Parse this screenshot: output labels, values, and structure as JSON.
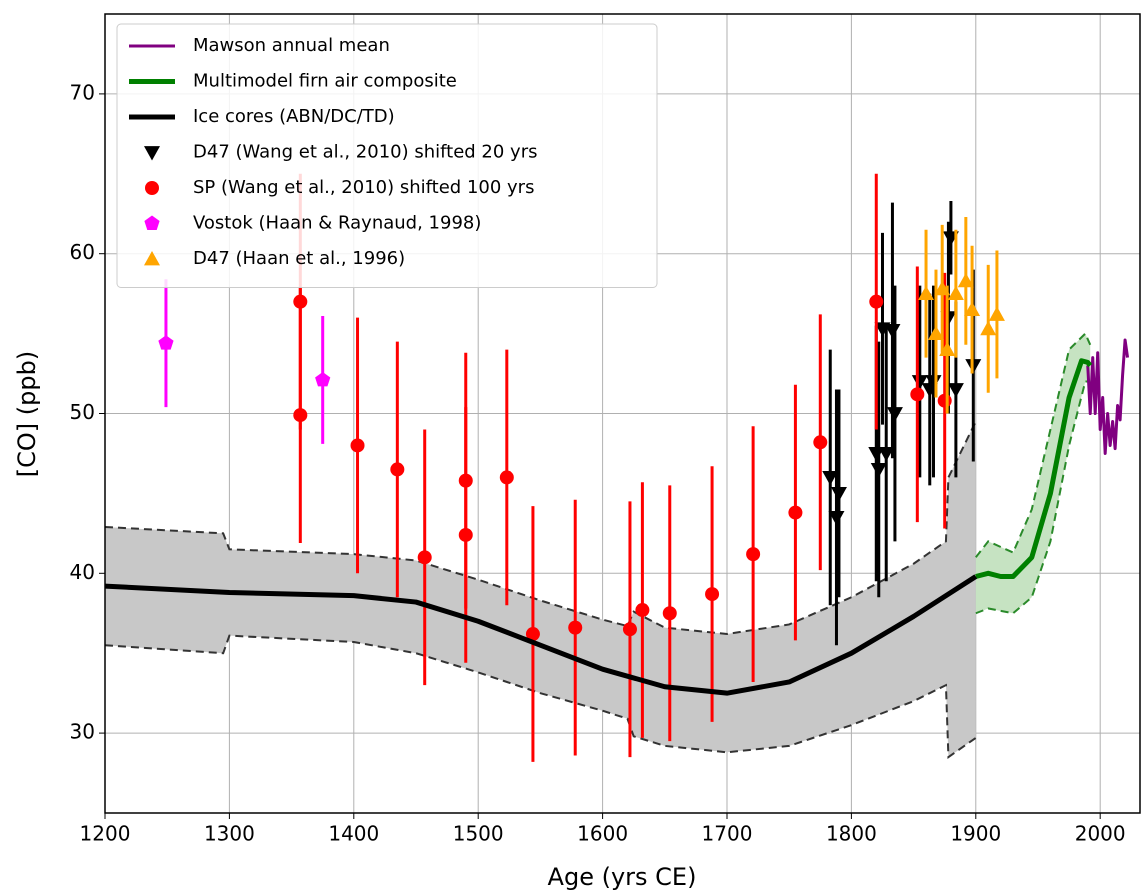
{
  "chart_data": {
    "type": "scatter",
    "xlabel": "Age (yrs CE)",
    "ylabel": "[CO] (ppb)",
    "xlim": [
      1200,
      2032
    ],
    "ylim": [
      25,
      75
    ],
    "xticks": [
      1200,
      1300,
      1400,
      1500,
      1600,
      1700,
      1800,
      1900,
      2000
    ],
    "yticks": [
      30,
      40,
      50,
      60,
      70
    ],
    "grid": true,
    "legend": "upper left",
    "bands": [
      {
        "color": "#c8c8c8",
        "x": [
          1200,
          1295,
          1300,
          1400,
          1450,
          1500,
          1550,
          1600,
          1620,
          1625,
          1650,
          1700,
          1750,
          1800,
          1850,
          1876,
          1878,
          1900
        ],
        "upper": [
          42.9,
          42.5,
          41.5,
          41.2,
          40.8,
          39.6,
          38.3,
          37.1,
          36.7,
          37.6,
          36.6,
          36.2,
          36.8,
          38.5,
          40.6,
          42,
          46,
          49.5
        ],
        "lower": [
          35.5,
          35.0,
          36.1,
          35.7,
          35.0,
          33.8,
          32.5,
          31.4,
          30.9,
          29.8,
          29.2,
          28.8,
          29.2,
          30.5,
          32.0,
          33.0,
          28.5,
          29.7
        ]
      },
      {
        "color": "#c6e3c2",
        "x": [
          1900,
          1910,
          1930,
          1945,
          1960,
          1975,
          1988,
          1992
        ],
        "upper": [
          41.0,
          42.0,
          41.3,
          44.0,
          49.0,
          54.0,
          55.0,
          54.3
        ],
        "lower": [
          37.5,
          37.8,
          37.5,
          38.5,
          42.0,
          48.0,
          52.0,
          52.0
        ]
      }
    ],
    "series": [
      {
        "name": "Mawson annual mean",
        "type": "line",
        "color": "#800080",
        "width": 3,
        "x": [
          1990,
          1992,
          1994,
          1996,
          1998,
          2000,
          2002,
          2004,
          2006,
          2008,
          2010,
          2012,
          2014,
          2016,
          2018,
          2020,
          2022
        ],
        "values": [
          53,
          50,
          53.5,
          50,
          53.8,
          49,
          51,
          47.5,
          50,
          48,
          49.5,
          47.8,
          50.5,
          49.6,
          52.4,
          54.6,
          53.5
        ]
      },
      {
        "name": "Multimodel firn air composite",
        "type": "line",
        "color": "#008000",
        "width": 5,
        "x": [
          1900,
          1910,
          1920,
          1930,
          1945,
          1960,
          1975,
          1985,
          1990,
          1992
        ],
        "values": [
          39.8,
          40.0,
          39.8,
          39.8,
          41.0,
          45.0,
          51.0,
          53.3,
          53.2,
          53.0
        ]
      },
      {
        "name": "Ice cores (ABN/DC/TD)",
        "type": "line",
        "color": "#000000",
        "width": 5,
        "x": [
          1200,
          1300,
          1400,
          1450,
          1500,
          1550,
          1600,
          1650,
          1700,
          1750,
          1800,
          1850,
          1900
        ],
        "values": [
          39.2,
          38.8,
          38.6,
          38.2,
          37.0,
          35.5,
          34.0,
          32.9,
          32.5,
          33.2,
          35.0,
          37.3,
          39.8
        ]
      },
      {
        "name": "D47 (Wang et al., 2010) shifted 20 yrs",
        "type": "scatter",
        "marker": "tri-down",
        "color": "#000000",
        "x": [
          1783,
          1788,
          1790,
          1820,
          1822,
          1825,
          1828,
          1833,
          1835,
          1855,
          1863,
          1866,
          1878,
          1880,
          1884,
          1898
        ],
        "values": [
          46,
          43.5,
          45,
          47.5,
          46.5,
          55.3,
          47.5,
          55.2,
          50,
          52,
          51.5,
          52,
          56,
          61,
          51.5,
          53
        ],
        "errors": [
          8,
          8,
          6.5,
          8,
          8,
          6,
          8,
          8,
          8,
          6,
          6,
          6,
          6,
          2.3,
          5.5,
          6
        ]
      },
      {
        "name": "SP (Wang et al., 2010) shifted 100 yrs",
        "type": "scatter",
        "marker": "circle",
        "color": "#ff0000",
        "x": [
          1357,
          1357,
          1403,
          1435,
          1457,
          1490,
          1490,
          1523,
          1544,
          1578,
          1622,
          1632,
          1654,
          1688,
          1721,
          1755,
          1775,
          1820,
          1853,
          1875
        ],
        "values": [
          57,
          49.9,
          48,
          46.5,
          41,
          45.8,
          42.4,
          46,
          36.2,
          36.6,
          36.5,
          37.7,
          37.5,
          38.7,
          41.2,
          43.8,
          48.2,
          57,
          51.2,
          50.8
        ],
        "errors": [
          8,
          8,
          8,
          8,
          8,
          8,
          8,
          8,
          8,
          8,
          8,
          8,
          8,
          8,
          8,
          8,
          8,
          8,
          8,
          8
        ]
      },
      {
        "name": "Vostok (Haan & Raynaud, 1998)",
        "type": "scatter",
        "marker": "pentagon",
        "color": "#ff00ff",
        "x": [
          1249,
          1375
        ],
        "values": [
          54.4,
          52.1
        ],
        "errors": [
          4,
          4
        ]
      },
      {
        "name": "D47 (Haan et al., 1996)",
        "type": "scatter",
        "marker": "tri-up",
        "color": "#ffa500",
        "x": [
          1860,
          1868,
          1873,
          1877,
          1884,
          1892,
          1897,
          1910,
          1917
        ],
        "values": [
          57.5,
          55,
          57.8,
          54,
          57.5,
          58.3,
          56.5,
          55.3,
          56.2
        ],
        "errors": [
          4,
          4,
          4,
          4,
          4,
          4,
          4,
          4,
          4
        ]
      }
    ]
  }
}
